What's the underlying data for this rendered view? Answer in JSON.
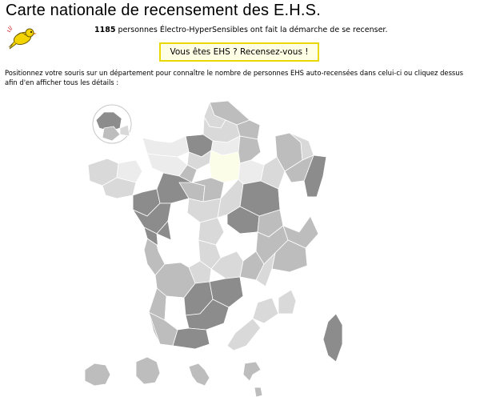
{
  "page": {
    "title": "Carte nationale de recensement des E.H.S.",
    "count_number": "1185",
    "count_text": " personnes Électro-HyperSensibles ont fait la démarche de se recenser.",
    "cta_label": "Vous êtes EHS ? Recensez-vous !",
    "instructions": "Positionnez votre souris sur un département pour connaître le nombre de personnes EHS auto-recensées dans celui-ci ou cliquez dessus afin d'en afficher tous les détails :"
  },
  "map": {
    "fill_colors": {
      "level1": "#8c8c8c",
      "level2": "#bdbdbd",
      "level3": "#d9d9d9",
      "level4": "#ececec",
      "none": "#ffffff",
      "highlight": "#fbfde8"
    },
    "icon": "canary-bird-icon"
  }
}
